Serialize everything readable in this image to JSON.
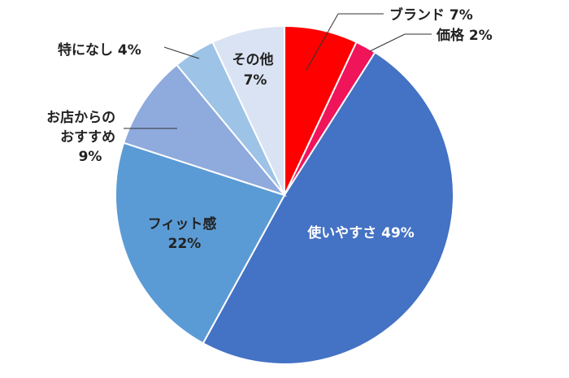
{
  "chart_data": {
    "type": "pie",
    "title": "",
    "slices": [
      {
        "label": "ブランド",
        "value": 7,
        "pct_text": "7%",
        "color": "#ff0000"
      },
      {
        "label": "価格",
        "value": 2,
        "pct_text": "2%",
        "color": "#f0145a"
      },
      {
        "label": "使いやすさ",
        "value": 49,
        "pct_text": "49%",
        "color": "#4472c4"
      },
      {
        "label": "フィット感",
        "value": 22,
        "pct_text": "22%",
        "color": "#5b9bd5"
      },
      {
        "label": "お店からのおすすめ",
        "value": 9,
        "pct_text": "9%",
        "color": "#8faadc"
      },
      {
        "label": "特になし",
        "value": 4,
        "pct_text": "4%",
        "color": "#9dc3e6"
      },
      {
        "label": "その他",
        "value": 7,
        "pct_text": "7%",
        "color": "#dae3f3"
      }
    ],
    "start_angle": "12 o'clock",
    "direction": "clockwise",
    "legend": "none (direct labels)"
  }
}
